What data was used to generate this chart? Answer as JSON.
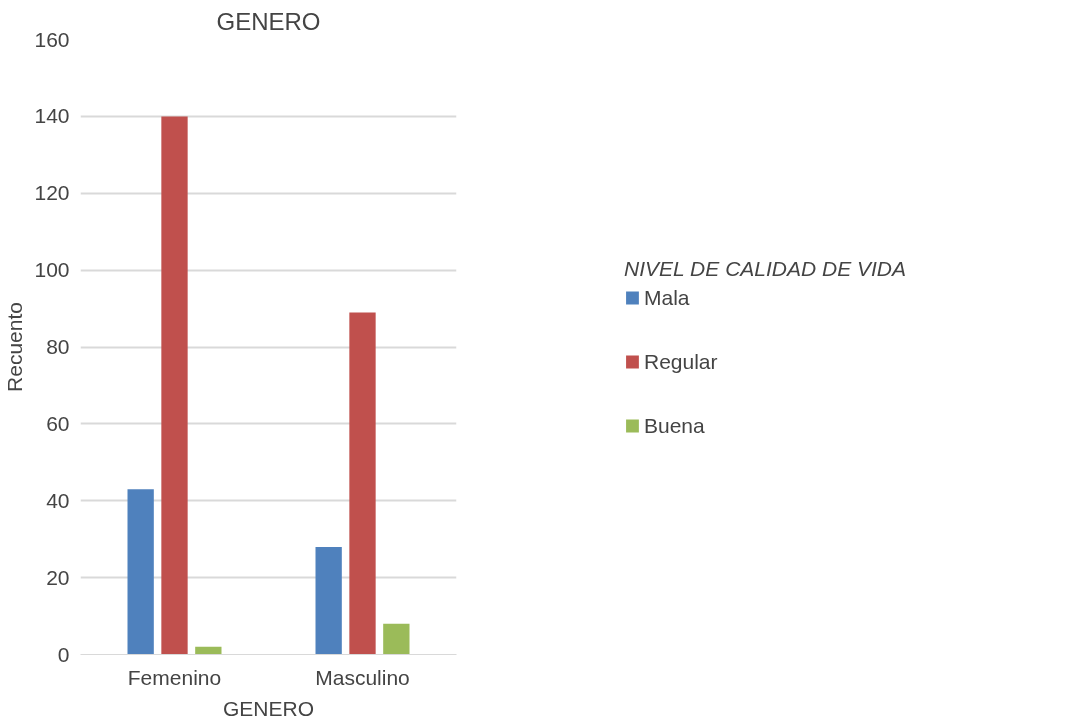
{
  "chart_data": {
    "type": "bar",
    "title": "GENERO",
    "xlabel": "GENERO",
    "ylabel": "Recuento",
    "legend_title": "NIVEL DE CALIDAD DE VIDA",
    "categories": [
      "Femenino",
      "Masculino"
    ],
    "series": [
      {
        "name": "Mala",
        "color": "#4f81bd",
        "values": [
          43,
          28
        ]
      },
      {
        "name": "Regular",
        "color": "#c0504d",
        "values": [
          140,
          89
        ]
      },
      {
        "name": "Buena",
        "color": "#9bbb59",
        "values": [
          2,
          8
        ]
      }
    ],
    "ylim": [
      0,
      160
    ],
    "yticks": [
      0,
      20,
      40,
      60,
      80,
      100,
      120,
      140,
      160
    ],
    "grid": "y",
    "legend": "right"
  }
}
